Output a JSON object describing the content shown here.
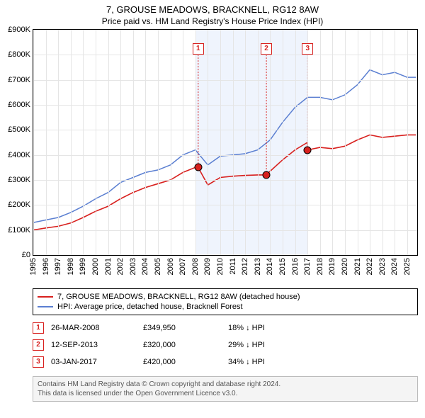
{
  "header": {
    "title": "7, GROUSE MEADOWS, BRACKNELL, RG12 8AW",
    "subtitle": "Price paid vs. HM Land Registry's House Price Index (HPI)"
  },
  "chart": {
    "type": "line",
    "background_color": "#ffffff",
    "grid_color": "#e5e5e5",
    "border_color": "#000000",
    "ylim": [
      0,
      900000
    ],
    "ytick_step": 100000,
    "yticks": [
      "£0",
      "£100K",
      "£200K",
      "£300K",
      "£400K",
      "£500K",
      "£600K",
      "£700K",
      "£800K",
      "£900K"
    ],
    "xlim": [
      1995,
      2025.8
    ],
    "xticks": [
      1995,
      1996,
      1997,
      1998,
      1999,
      2000,
      2001,
      2002,
      2003,
      2004,
      2005,
      2006,
      2007,
      2008,
      2009,
      2010,
      2011,
      2012,
      2013,
      2014,
      2015,
      2016,
      2017,
      2018,
      2019,
      2020,
      2021,
      2022,
      2023,
      2024,
      2025
    ],
    "label_fontsize": 11,
    "shade_band": {
      "start": 2008.0,
      "end": 2017.0,
      "color": "rgba(100,149,237,0.10)"
    },
    "series": {
      "hpi": {
        "color": "#5b7fd1",
        "width": 1.5,
        "x": [
          1995,
          1996,
          1997,
          1998,
          1999,
          2000,
          2001,
          2002,
          2003,
          2004,
          2005,
          2006,
          2007,
          2008,
          2009,
          2010,
          2011,
          2012,
          2013,
          2014,
          2015,
          2016,
          2017,
          2018,
          2019,
          2020,
          2021,
          2022,
          2023,
          2024,
          2025,
          2025.7
        ],
        "y": [
          130000,
          140000,
          150000,
          170000,
          195000,
          225000,
          250000,
          290000,
          310000,
          330000,
          340000,
          360000,
          400000,
          420000,
          360000,
          395000,
          400000,
          405000,
          420000,
          460000,
          530000,
          590000,
          630000,
          630000,
          620000,
          640000,
          680000,
          740000,
          720000,
          730000,
          710000,
          710000
        ]
      },
      "property": {
        "color": "#d8201e",
        "width": 1.6,
        "x": [
          1995,
          1996,
          1997,
          1998,
          1999,
          2000,
          2001,
          2002,
          2003,
          2004,
          2005,
          2006,
          2007,
          2008,
          2008.23,
          2009,
          2010,
          2011,
          2012,
          2013,
          2013.7,
          2014,
          2015,
          2016,
          2017,
          2017.01,
          2018,
          2019,
          2020,
          2021,
          2022,
          2023,
          2024,
          2025,
          2025.7
        ],
        "y": [
          100000,
          108000,
          115000,
          128000,
          150000,
          175000,
          195000,
          225000,
          250000,
          270000,
          285000,
          300000,
          330000,
          350000,
          349950,
          280000,
          310000,
          315000,
          318000,
          320000,
          320000,
          335000,
          380000,
          420000,
          450000,
          420000,
          430000,
          425000,
          435000,
          460000,
          480000,
          470000,
          475000,
          480000,
          480000
        ]
      }
    },
    "markers": [
      {
        "label": "1",
        "x": 2008.23,
        "y": 349950,
        "box_top": 0.06,
        "color": "#d8201e"
      },
      {
        "label": "2",
        "x": 2013.7,
        "y": 320000,
        "box_top": 0.06,
        "color": "#d8201e"
      },
      {
        "label": "3",
        "x": 2017.01,
        "y": 420000,
        "box_top": 0.06,
        "color": "#d8201e"
      }
    ],
    "marker_point_fill": "#d8201e",
    "marker_point_stroke": "#000000"
  },
  "legend": {
    "items": [
      {
        "color": "#d8201e",
        "label": "7, GROUSE MEADOWS, BRACKNELL, RG12 8AW (detached house)"
      },
      {
        "color": "#5b7fd1",
        "label": "HPI: Average price, detached house, Bracknell Forest"
      }
    ]
  },
  "sales": [
    {
      "n": "1",
      "date": "26-MAR-2008",
      "price": "£349,950",
      "delta": "18% ↓ HPI",
      "color": "#d8201e"
    },
    {
      "n": "2",
      "date": "12-SEP-2013",
      "price": "£320,000",
      "delta": "29% ↓ HPI",
      "color": "#d8201e"
    },
    {
      "n": "3",
      "date": "03-JAN-2017",
      "price": "£420,000",
      "delta": "34% ↓ HPI",
      "color": "#d8201e"
    }
  ],
  "footer": {
    "line1": "Contains HM Land Registry data © Crown copyright and database right 2024.",
    "line2": "This data is licensed under the Open Government Licence v3.0."
  }
}
